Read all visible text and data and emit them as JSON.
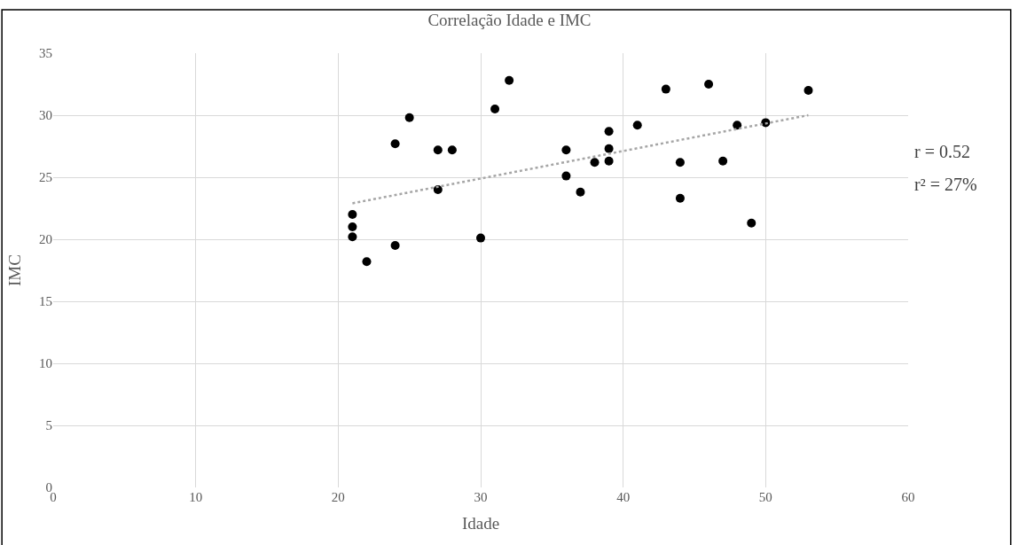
{
  "chart_data": {
    "type": "scatter",
    "title": "Correlação Idade e IMC",
    "xlabel": "Idade",
    "ylabel": "IMC",
    "xlim": [
      0,
      60
    ],
    "xticks": [
      0,
      10,
      20,
      30,
      40,
      50,
      60
    ],
    "ylim": [
      0,
      35
    ],
    "yticks": [
      0,
      5,
      10,
      15,
      20,
      25,
      30,
      35
    ],
    "grid": true,
    "marker": "circle",
    "series": [
      {
        "color": "#000000",
        "x": [
          21,
          21,
          21,
          22,
          24,
          24,
          25,
          27,
          27,
          28,
          30,
          31,
          32,
          36,
          36,
          37,
          38,
          39,
          39,
          39,
          41,
          43,
          44,
          44,
          46,
          47,
          48,
          49,
          50,
          53
        ],
        "values": [
          22,
          21,
          20.2,
          18.2,
          27.7,
          19.5,
          29.8,
          27.2,
          24,
          27.2,
          20.1,
          30.5,
          32.8,
          27.2,
          25.1,
          23.8,
          26.2,
          28.7,
          27.3,
          26.3,
          29.2,
          32.1,
          26.2,
          23.3,
          32.5,
          26.3,
          29.2,
          21.3,
          29.4,
          32
        ]
      },
      {
        "type": "line",
        "marker": "none",
        "color": "#a6a6a6",
        "line_style": "dotted",
        "x": [
          21,
          53
        ],
        "values": [
          22.9,
          30.0
        ]
      }
    ],
    "annotations": [
      "r = 0.52",
      "r² = 27%"
    ]
  }
}
